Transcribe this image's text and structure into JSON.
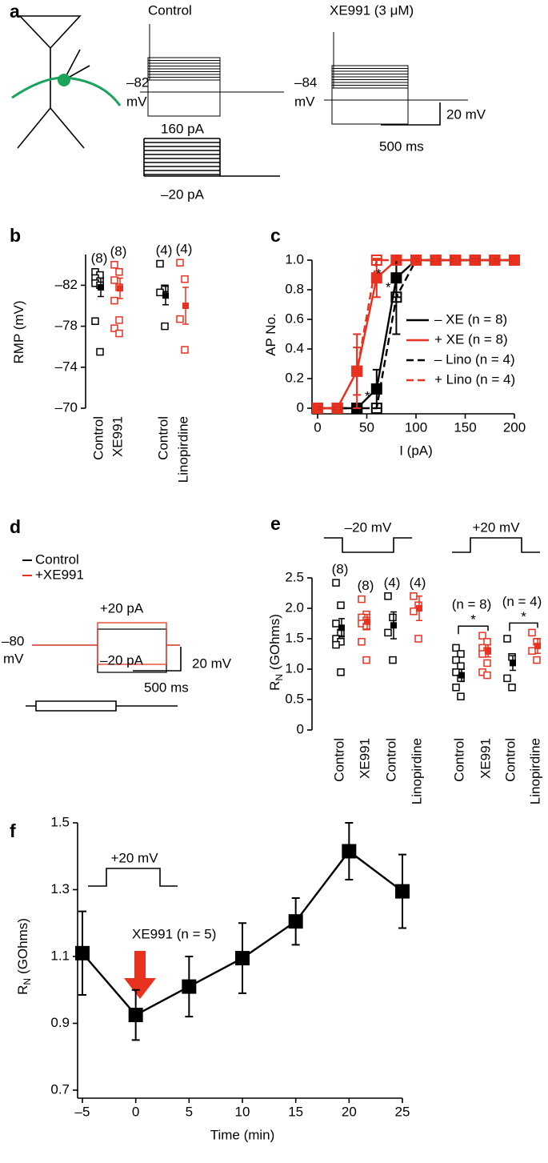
{
  "panel_labels": [
    "a",
    "b",
    "c",
    "d",
    "e",
    "f"
  ],
  "panel_a": {
    "control_label": "Control",
    "xe_label": "XE991 (3 μM)",
    "control_rmp": "–82",
    "xe_rmp": "–84",
    "rmp_unit": "mV",
    "scale_v": "20 mV",
    "scale_t": "500 ms",
    "step_max": "160 pA",
    "step_min": "–20 pA"
  },
  "panel_d": {
    "series": [
      {
        "name": "Control",
        "color": "#000000"
      },
      {
        "name": "+XE991",
        "color": "#e8311f"
      }
    ],
    "step_pos": "+20 pA",
    "step_neg": "–20 pA",
    "rmp": "–80",
    "rmp_unit": "mV",
    "scale_v": "20 mV",
    "scale_t": "500 ms"
  },
  "chart_data": [
    {
      "type": "dotplot",
      "y_label": "RMP (mV)",
      "ylim": [
        -70,
        -85
      ],
      "yticks": [
        {
          "value": -82,
          "label": "–82"
        },
        {
          "value": -78,
          "label": "–78"
        },
        {
          "value": -74,
          "label": "–74"
        },
        {
          "value": -70,
          "label": "–70"
        }
      ],
      "groups": [
        {
          "category": "Control",
          "n_label": "(8)",
          "color": "#000000",
          "points": [
            -83.3,
            -83,
            -82.7,
            -82.4,
            -82.2,
            -82,
            -78.5,
            -75.5
          ],
          "mean": -81.8,
          "error": 0.9
        },
        {
          "category": "XE991",
          "n_label": "(8)",
          "color": "#e8311f",
          "points": [
            -84,
            -83.3,
            -82.5,
            -81.8,
            -80.5,
            -78.6,
            -77.8,
            -77.3
          ],
          "mean": -81.7,
          "error": 1.0
        },
        {
          "category": "Control",
          "n_label": "(4)",
          "color": "#000000",
          "points": [
            -84.1,
            -81.7,
            -81.3,
            -78
          ],
          "mean": -81,
          "error": 0.9
        },
        {
          "category": "Linopirdine",
          "n_label": "(4)",
          "color": "#e8311f",
          "points": [
            -84.2,
            -82.6,
            -78.7,
            -75.7
          ],
          "mean": -80,
          "error": 1.8
        }
      ]
    },
    {
      "type": "line",
      "x_label": "I (pA)",
      "y_label": "AP No.",
      "xlim": [
        0,
        200
      ],
      "xticks": [
        0,
        50,
        100,
        150,
        200
      ],
      "ylim": [
        0,
        1
      ],
      "yticks": [
        0,
        0.2,
        0.4,
        0.6,
        0.8,
        {
          "value": 1,
          "label": "1.0"
        }
      ],
      "legend_position": "lower right",
      "x": [
        0,
        20,
        40,
        60,
        80,
        100,
        120,
        140,
        160,
        180,
        200
      ],
      "series": [
        {
          "name": "– XE (n = 8)",
          "color": "#000000",
          "dashed": false,
          "open_markers": false,
          "values": [
            0,
            0,
            0,
            0.13,
            0.88,
            1,
            1,
            1,
            1,
            1,
            1
          ],
          "errors": [
            0,
            0,
            0,
            0.13,
            0.13,
            0,
            0,
            0,
            0,
            0,
            0
          ]
        },
        {
          "name": "+ XE (n = 8)",
          "color": "#e8311f",
          "dashed": false,
          "open_markers": false,
          "values": [
            0,
            0,
            0.25,
            0.88,
            1,
            1,
            1,
            1,
            1,
            1,
            1
          ],
          "errors": [
            0,
            0,
            0.16,
            0.13,
            0,
            0,
            0,
            0,
            0,
            0,
            0
          ]
        },
        {
          "name": "– Lino (n = 4)",
          "color": "#000000",
          "dashed": true,
          "open_markers": true,
          "values": [
            0,
            0,
            0,
            0,
            0.75,
            1,
            1,
            1,
            1,
            1,
            1
          ],
          "errors": [
            0,
            0,
            0,
            0,
            0.25,
            0,
            0,
            0,
            0,
            0,
            0
          ]
        },
        {
          "name": "+ Lino (n = 4)",
          "color": "#e8311f",
          "dashed": true,
          "open_markers": true,
          "values": [
            0,
            0,
            0.25,
            1,
            1,
            1,
            1,
            1,
            1,
            1,
            1
          ],
          "errors": [
            0,
            0,
            0.25,
            0,
            0,
            0,
            0,
            0,
            0,
            0,
            0
          ]
        }
      ],
      "annotations": [
        "*",
        "*",
        "*"
      ]
    },
    {
      "type": "dotplot",
      "y_label": "R",
      "y_label_sub": "N",
      "y_label_unit": "(GOhms)",
      "ylim": [
        0,
        2.5
      ],
      "yticks": [
        0,
        0.5,
        {
          "value": 1,
          "label": "1.0"
        },
        1.5,
        {
          "value": 2,
          "label": "2.0"
        },
        2.5
      ],
      "step_labels": [
        "–20 mV",
        "+20 mV"
      ],
      "groups": [
        {
          "category": "Control",
          "n_label": "(8)",
          "color": "#000000",
          "points": [
            2.42,
            2.05,
            1.75,
            1.6,
            1.5,
            1.45,
            1.4,
            0.95
          ],
          "mean": 1.68,
          "error": 0.15
        },
        {
          "category": "XE991",
          "n_label": "(8)",
          "color": "#e8311f",
          "points": [
            2.15,
            1.9,
            1.85,
            1.8,
            1.75,
            1.7,
            1.45,
            1.15
          ],
          "mean": 1.78,
          "error": 0.12
        },
        {
          "category": "Control",
          "n_label": "(4)",
          "color": "#000000",
          "points": [
            2.2,
            1.85,
            1.6,
            1.15
          ],
          "mean": 1.72,
          "error": 0.22
        },
        {
          "category": "Linopirdine",
          "n_label": "(4)",
          "color": "#e8311f",
          "points": [
            2.2,
            2.05,
            1.95,
            1.5
          ],
          "mean": 2.0,
          "error": 0.2
        },
        {
          "category": "Control",
          "color": "#000000",
          "points": [
            1.35,
            1.25,
            1.15,
            1.05,
            0.95,
            0.85,
            0.7,
            0.55
          ],
          "mean": 0.9,
          "error": 0.1
        },
        {
          "category": "XE991",
          "color": "#e8311f",
          "points": [
            1.55,
            1.45,
            1.35,
            1.3,
            1.25,
            1.1,
            0.95,
            0.9
          ],
          "mean": 1.3,
          "error": 0.1
        },
        {
          "category": "Control",
          "color": "#000000",
          "points": [
            1.5,
            1.2,
            0.85,
            0.7
          ],
          "mean": 1.1,
          "error": 0.12
        },
        {
          "category": "Linopirdine",
          "color": "#e8311f",
          "points": [
            1.6,
            1.45,
            1.3,
            1.15
          ],
          "mean": 1.38,
          "error": 0.12
        }
      ],
      "comparisons": [
        {
          "n_label": "(n = 8)",
          "star": "*"
        },
        {
          "n_label": "(n = 4)",
          "star": "*"
        }
      ]
    },
    {
      "type": "line",
      "x_label": "Time (min)",
      "y_label": "R",
      "y_label_sub": "N",
      "y_label_unit": "(GOhms)",
      "xlim": [
        -5,
        25
      ],
      "xticks": [
        {
          "value": -5,
          "label": "–5"
        },
        0,
        5,
        10,
        15,
        20,
        25
      ],
      "ylim": [
        0.7,
        1.5
      ],
      "yticks": [
        0.7,
        0.9,
        1.1,
        1.3,
        1.5
      ],
      "x": [
        -5,
        0,
        5,
        10,
        15,
        20,
        25
      ],
      "series": [
        {
          "color": "#000000",
          "dashed": false,
          "open_markers": false,
          "values": [
            1.11,
            0.925,
            1.01,
            1.095,
            1.205,
            1.415,
            1.295
          ],
          "errors": [
            0.125,
            0.075,
            0.09,
            0.105,
            0.07,
            0.085,
            0.11
          ]
        }
      ],
      "step_labels": [
        "+20 mV"
      ],
      "annotations": [
        "XE991 (n = 5)"
      ]
    }
  ]
}
